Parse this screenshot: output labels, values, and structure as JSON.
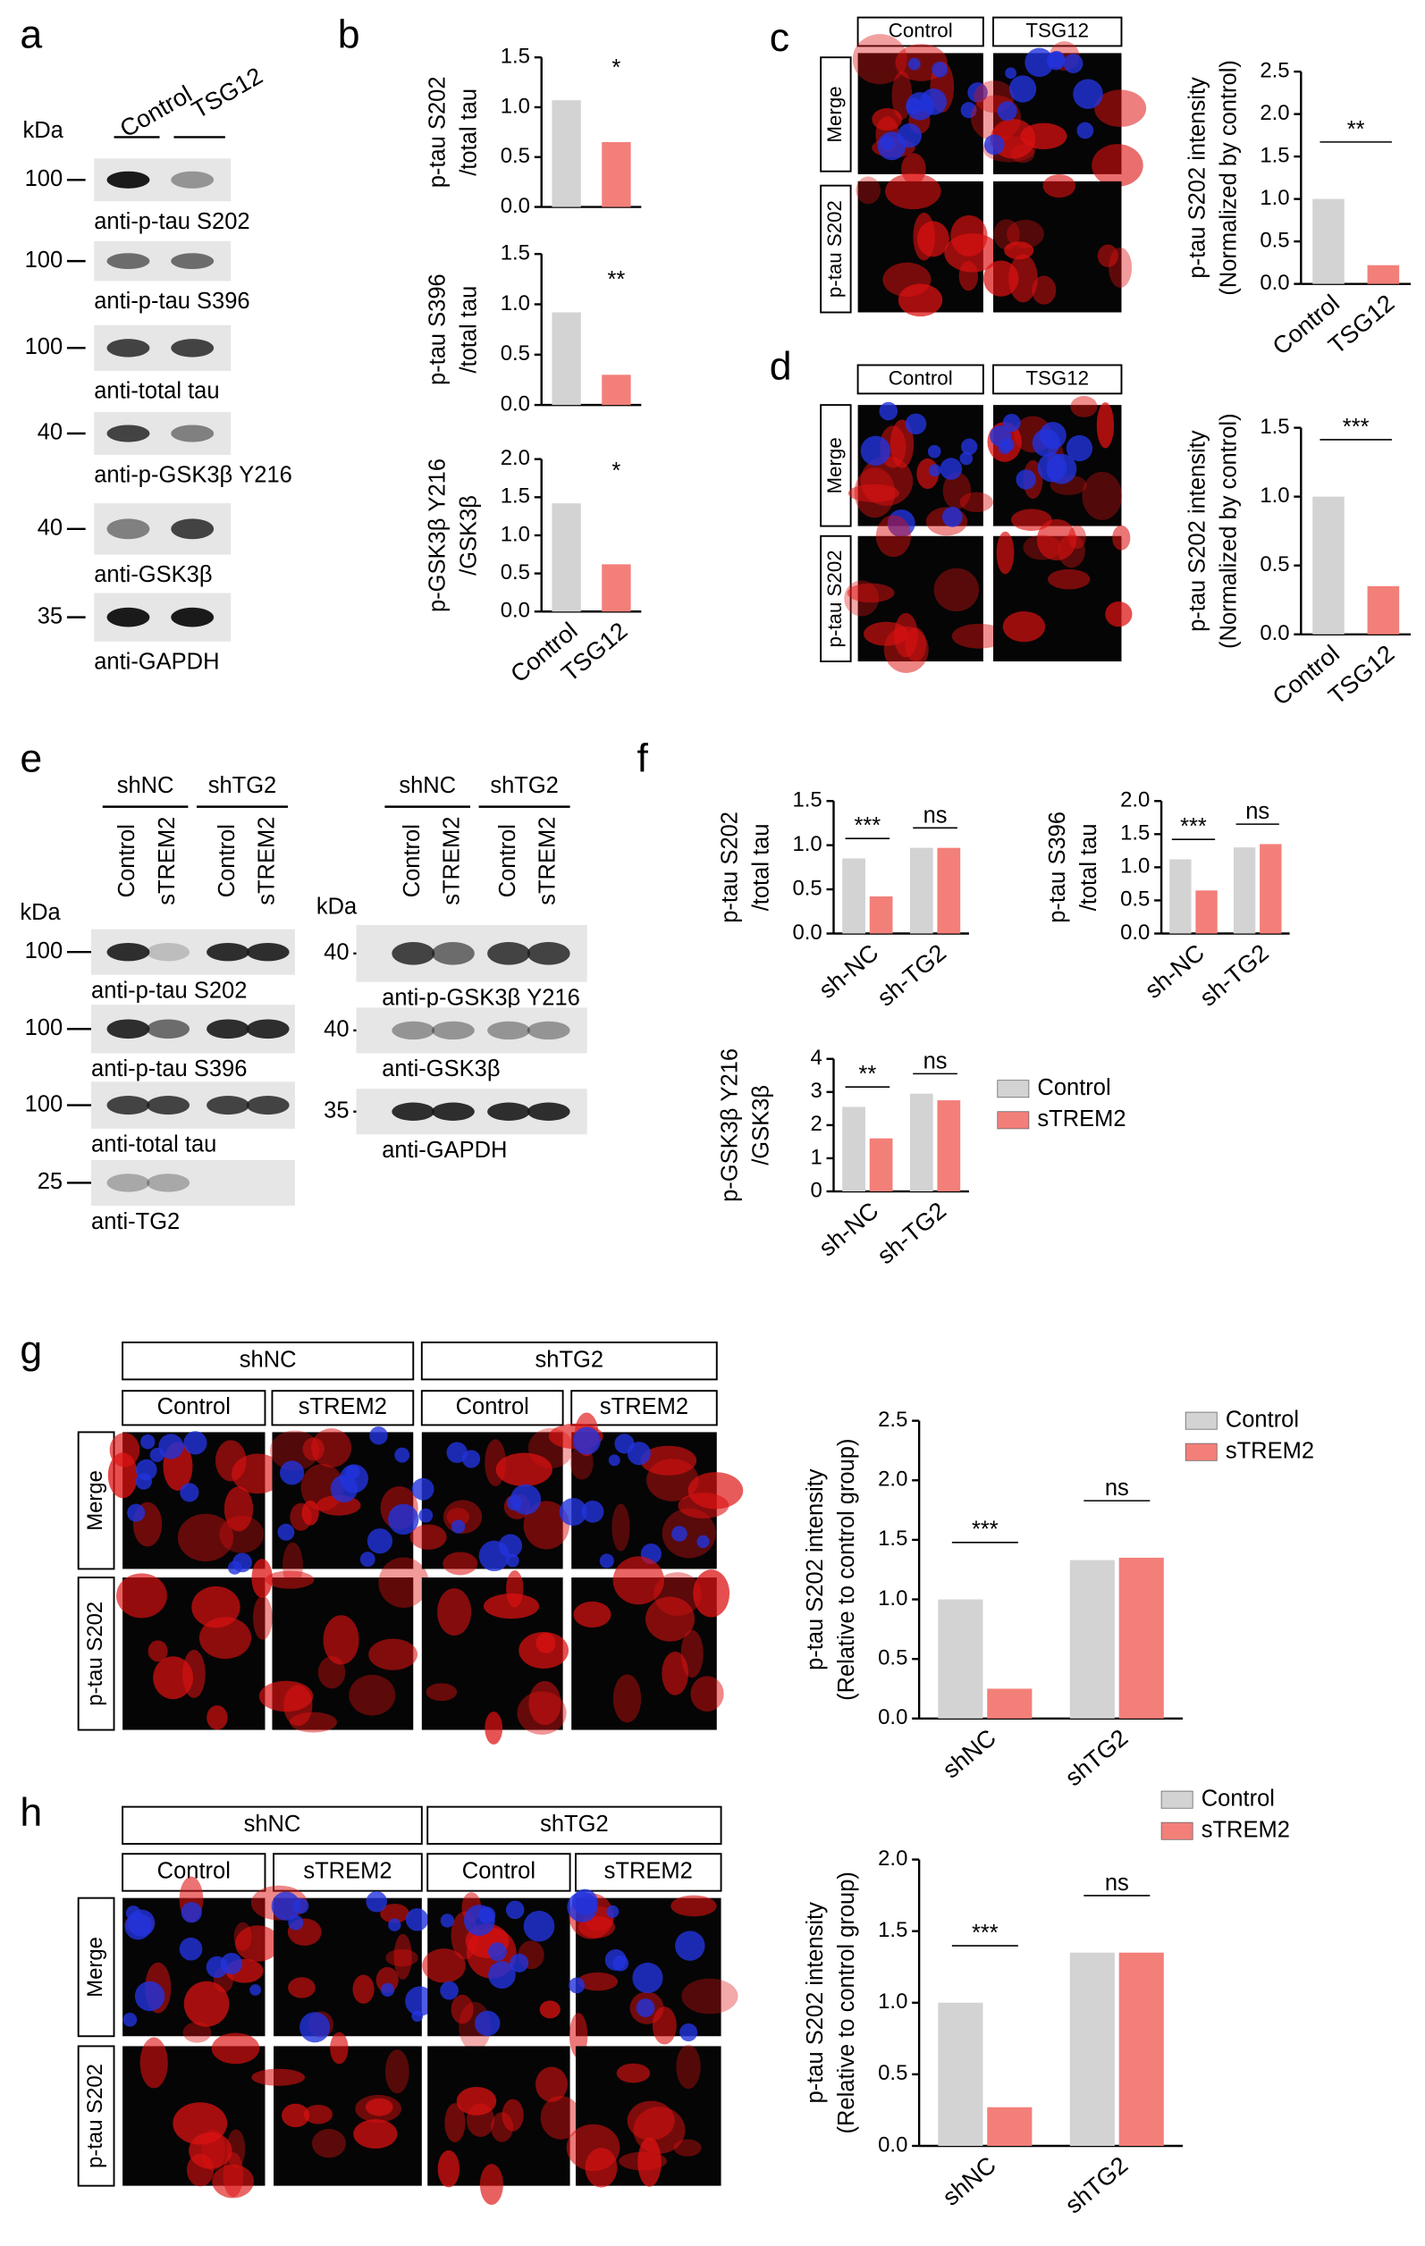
{
  "panel_letters": [
    "a",
    "b",
    "c",
    "d",
    "e",
    "f",
    "g",
    "h"
  ],
  "blot_a": {
    "lanes": [
      "Control",
      "TSG12"
    ],
    "kda_unit": "kDa",
    "markers": [
      "100",
      "100",
      "100",
      "40",
      "40",
      "35"
    ],
    "antibodies": [
      "anti-p-tau S202",
      "anti-p-tau S396",
      "anti-total tau",
      "anti-p-GSK3β Y216",
      "anti-GSK3β",
      "anti-GAPDH"
    ]
  },
  "images_c": {
    "groups": [
      "Control",
      "TSG12"
    ],
    "rows": [
      "Merge",
      "p-tau S202"
    ]
  },
  "images_d": {
    "groups": [
      "Control",
      "TSG12"
    ],
    "rows": [
      "Merge",
      "p-tau S202"
    ]
  },
  "blot_e": {
    "groups": [
      "shNC",
      "shTG2"
    ],
    "lanes": [
      "Control",
      "sTREM2",
      "Control",
      "sTREM2"
    ],
    "kda_unit": "kDa",
    "left": {
      "markers": [
        "100",
        "100",
        "100",
        "25"
      ],
      "antibodies": [
        "anti-p-tau S202",
        "anti-p-tau S396",
        "anti-total tau",
        "anti-TG2"
      ]
    },
    "right": {
      "markers": [
        "40",
        "40",
        "35"
      ],
      "antibodies": [
        "anti-p-GSK3β Y216",
        "anti-GSK3β",
        "anti-GAPDH"
      ]
    }
  },
  "images_g": {
    "groups": [
      "shNC",
      "shTG2"
    ],
    "columns": [
      "Control",
      "sTREM2",
      "Control",
      "sTREM2"
    ],
    "rows": [
      "Merge",
      "p-tau S202"
    ]
  },
  "images_h": {
    "groups": [
      "shNC",
      "shTG2"
    ],
    "columns": [
      "Control",
      "sTREM2",
      "Control",
      "sTREM2"
    ],
    "rows": [
      "Merge",
      "p-tau S202"
    ]
  },
  "chart_data": [
    {
      "type": "bar",
      "ylabel": [
        "p-tau S202",
        "/total tau"
      ],
      "categories": [
        null,
        null
      ],
      "values": [
        1.07,
        0.65
      ],
      "colors": [
        "#d3d3d3",
        "#f37f79"
      ],
      "significance": [
        "*"
      ],
      "ylim": [
        0,
        1.5
      ],
      "yticks": [
        {
          "value": 0,
          "label": "0.0"
        },
        {
          "value": 0.5,
          "label": "0.5"
        },
        {
          "value": 1,
          "label": "1.0"
        },
        {
          "value": 1.5,
          "label": "1.5"
        }
      ]
    },
    {
      "type": "bar",
      "ylabel": [
        "p-tau S396",
        "/total tau"
      ],
      "categories": [
        null,
        null
      ],
      "values": [
        0.92,
        0.3
      ],
      "colors": [
        "#d3d3d3",
        "#f37f79"
      ],
      "significance": [
        "**"
      ],
      "ylim": [
        0,
        1.5
      ],
      "yticks": [
        {
          "value": 0,
          "label": "0.0"
        },
        {
          "value": 0.5,
          "label": "0.5"
        },
        {
          "value": 1,
          "label": "1.0"
        },
        {
          "value": 1.5,
          "label": "1.5"
        }
      ]
    },
    {
      "type": "bar",
      "ylabel": [
        "p-GSK3β Y216",
        "/GSK3β"
      ],
      "categories": [
        "Control",
        "TSG12"
      ],
      "values": [
        1.42,
        0.62
      ],
      "colors": [
        "#d3d3d3",
        "#f37f79"
      ],
      "significance": [
        "*"
      ],
      "ylim": [
        0,
        2
      ],
      "yticks": [
        {
          "value": 0,
          "label": "0.0"
        },
        {
          "value": 0.5,
          "label": "0.5"
        },
        {
          "value": 1,
          "label": "1.0"
        },
        {
          "value": 1.5,
          "label": "1.5"
        },
        {
          "value": 2,
          "label": "2.0"
        }
      ]
    },
    {
      "type": "bar",
      "ylabel": [
        "p-tau S202 intensity",
        "(Normalized by control)"
      ],
      "categories": [
        "Control",
        "TSG12"
      ],
      "values": [
        1.0,
        0.22
      ],
      "colors": [
        "#d3d3d3",
        "#f37f79"
      ],
      "significance": [
        "**"
      ],
      "ylim": [
        0,
        2.5
      ],
      "yticks": [
        {
          "value": 0,
          "label": "0.0"
        },
        {
          "value": 0.5,
          "label": "0.5"
        },
        {
          "value": 1,
          "label": "1.0"
        },
        {
          "value": 1.5,
          "label": "1.5"
        },
        {
          "value": 2,
          "label": "2.0"
        },
        {
          "value": 2.5,
          "label": "2.5"
        }
      ]
    },
    {
      "type": "bar",
      "ylabel": [
        "p-tau S202 intensity",
        "(Normalized by control)"
      ],
      "categories": [
        "Control",
        "TSG12"
      ],
      "values": [
        1.0,
        0.35
      ],
      "colors": [
        "#d3d3d3",
        "#f37f79"
      ],
      "significance": [
        "***"
      ],
      "ylim": [
        0,
        1.5
      ],
      "yticks": [
        {
          "value": 0,
          "label": "0.0"
        },
        {
          "value": 0.5,
          "label": "0.5"
        },
        {
          "value": 1,
          "label": "1.0"
        },
        {
          "value": 1.5,
          "label": "1.5"
        }
      ]
    },
    {
      "type": "grouped_bar",
      "ylabel": [
        "p-tau S202",
        "/total tau"
      ],
      "categories": [
        "sh-NC",
        "sh-TG2"
      ],
      "series": [
        {
          "name": "Control",
          "color": "#d3d3d3",
          "values": [
            0.85,
            0.97
          ]
        },
        {
          "name": "sTREM2",
          "color": "#f37f79",
          "values": [
            0.42,
            0.97
          ]
        }
      ],
      "significance": [
        "***",
        "ns"
      ],
      "ylim": [
        0,
        1.5
      ],
      "yticks": [
        {
          "value": 0,
          "label": "0.0"
        },
        {
          "value": 0.5,
          "label": "0.5"
        },
        {
          "value": 1,
          "label": "1.0"
        },
        {
          "value": 1.5,
          "label": "1.5"
        }
      ]
    },
    {
      "type": "grouped_bar",
      "ylabel": [
        "p-tau S396",
        "/total tau"
      ],
      "categories": [
        "sh-NC",
        "sh-TG2"
      ],
      "series": [
        {
          "name": "Control",
          "color": "#d3d3d3",
          "values": [
            1.12,
            1.3
          ]
        },
        {
          "name": "sTREM2",
          "color": "#f37f79",
          "values": [
            0.65,
            1.35
          ]
        }
      ],
      "significance": [
        "***",
        "ns"
      ],
      "ylim": [
        0,
        2
      ],
      "yticks": [
        {
          "value": 0,
          "label": "0.0"
        },
        {
          "value": 0.5,
          "label": "0.5"
        },
        {
          "value": 1,
          "label": "1.0"
        },
        {
          "value": 1.5,
          "label": "1.5"
        },
        {
          "value": 2,
          "label": "2.0"
        }
      ]
    },
    {
      "type": "grouped_bar",
      "ylabel": [
        "p-GSK3β Y216",
        "/GSK3β"
      ],
      "categories": [
        "sh-NC",
        "sh-TG2"
      ],
      "series": [
        {
          "name": "Control",
          "color": "#d3d3d3",
          "values": [
            2.55,
            2.95
          ]
        },
        {
          "name": "sTREM2",
          "color": "#f37f79",
          "values": [
            1.6,
            2.75
          ]
        }
      ],
      "significance": [
        "**",
        "ns"
      ],
      "ylim": [
        0,
        4
      ],
      "yticks": [
        0,
        1,
        2,
        3,
        4
      ],
      "legend": "right"
    },
    {
      "type": "grouped_bar",
      "ylabel": [
        "p-tau S202 intensity",
        "(Relative to control group)"
      ],
      "categories": [
        "shNC",
        "shTG2"
      ],
      "series": [
        {
          "name": "Control",
          "color": "#d3d3d3",
          "values": [
            1.0,
            1.33
          ]
        },
        {
          "name": "sTREM2",
          "color": "#f37f79",
          "values": [
            0.25,
            1.35
          ]
        }
      ],
      "significance": [
        "***",
        "ns"
      ],
      "ylim": [
        0,
        2.5
      ],
      "yticks": [
        {
          "value": 0,
          "label": "0.0"
        },
        {
          "value": 0.5,
          "label": "0.5"
        },
        {
          "value": 1,
          "label": "1.0"
        },
        {
          "value": 1.5,
          "label": "1.5"
        },
        {
          "value": 2,
          "label": "2.0"
        },
        {
          "value": 2.5,
          "label": "2.5"
        }
      ],
      "legend": "upper right"
    },
    {
      "type": "grouped_bar",
      "ylabel": [
        "p-tau S202 intensity",
        "(Relative to control group)"
      ],
      "categories": [
        "shNC",
        "shTG2"
      ],
      "series": [
        {
          "name": "Control",
          "color": "#d3d3d3",
          "values": [
            1.0,
            1.35
          ]
        },
        {
          "name": "sTREM2",
          "color": "#f37f79",
          "values": [
            0.27,
            1.35
          ]
        }
      ],
      "significance": [
        "***",
        "ns"
      ],
      "ylim": [
        0,
        2
      ],
      "yticks": [
        {
          "value": 0,
          "label": "0.0"
        },
        {
          "value": 0.5,
          "label": "0.5"
        },
        {
          "value": 1,
          "label": "1.0"
        },
        {
          "value": 1.5,
          "label": "1.5"
        },
        {
          "value": 2,
          "label": "2.0"
        }
      ],
      "legend": "upper right"
    }
  ]
}
